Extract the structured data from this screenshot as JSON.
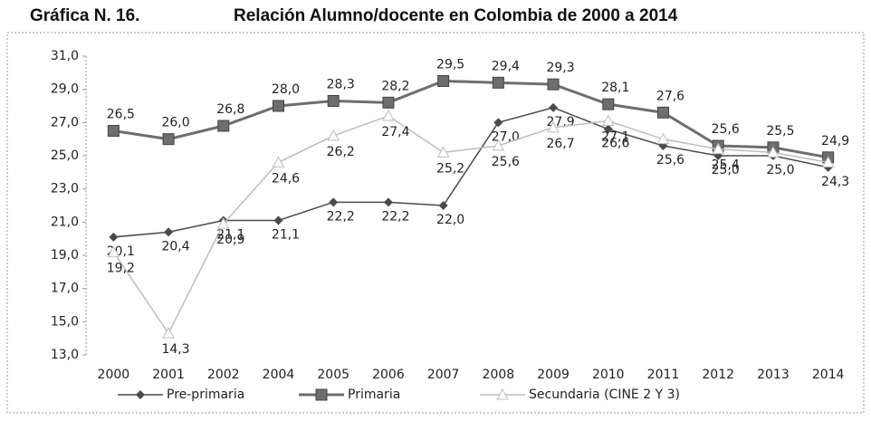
{
  "chart_data": {
    "type": "line",
    "title": "Gráfica N. 16.",
    "subtitle": "Relación Alumno/docente en Colombia de 2000 a 2014",
    "categories": [
      "2000",
      "2001",
      "2002",
      "2004",
      "2005",
      "2006",
      "2007",
      "2008",
      "2009",
      "2010",
      "2011",
      "2012",
      "2013",
      "2014"
    ],
    "series": [
      {
        "name": "Pre-primaria",
        "color": "#4a4a4a",
        "marker": "diamond",
        "values": [
          20.1,
          20.4,
          21.1,
          21.1,
          22.2,
          22.2,
          22.0,
          27.0,
          27.9,
          26.6,
          25.6,
          25.0,
          25.0,
          24.3
        ],
        "value_labels": [
          "20,1",
          "20,4",
          "21,1",
          "21,1",
          "22,2",
          "22,2",
          "22,0",
          "27,0",
          "27,9",
          "26,6",
          "25,6",
          "25,0",
          "25,0",
          "24,3"
        ]
      },
      {
        "name": "Primaria",
        "color": "#6e6e6e",
        "marker": "square",
        "values": [
          26.5,
          26.0,
          26.8,
          28.0,
          28.3,
          28.2,
          29.5,
          29.4,
          29.3,
          28.1,
          27.6,
          25.6,
          25.5,
          24.9
        ],
        "value_labels": [
          "26,5",
          "26,0",
          "26,8",
          "28,0",
          "28,3",
          "28,2",
          "29,5",
          "29,4",
          "29,3",
          "28,1",
          "27,6",
          "25,6",
          "25,5",
          "24,9"
        ]
      },
      {
        "name": "Secundaria (CINE 2 Y 3)",
        "color": "#bdbdbd",
        "marker": "triangle",
        "values": [
          19.2,
          14.3,
          20.9,
          24.6,
          26.2,
          27.4,
          25.2,
          25.6,
          26.7,
          27.1,
          26.0,
          25.4,
          25.2,
          24.6
        ],
        "value_labels": [
          "19,2",
          "14,3",
          "20,9",
          "24,6",
          "26,2",
          "27,4",
          "25,2",
          "25,6",
          "26,7",
          "27,1",
          null,
          "25,4",
          null,
          null
        ]
      }
    ],
    "ylim": [
      13,
      31
    ],
    "yticks": [
      {
        "value": 13,
        "label": "13,0"
      },
      {
        "value": 15,
        "label": "15,0"
      },
      {
        "value": 17,
        "label": "17,0"
      },
      {
        "value": 19,
        "label": "19,0"
      },
      {
        "value": 21,
        "label": "21,0"
      },
      {
        "value": 23,
        "label": "23,0"
      },
      {
        "value": 25,
        "label": "25,0"
      },
      {
        "value": 27,
        "label": "27,0"
      },
      {
        "value": 29,
        "label": "29,0"
      },
      {
        "value": 31,
        "label": "31,0"
      }
    ],
    "grid": false,
    "legend": "bottom"
  }
}
